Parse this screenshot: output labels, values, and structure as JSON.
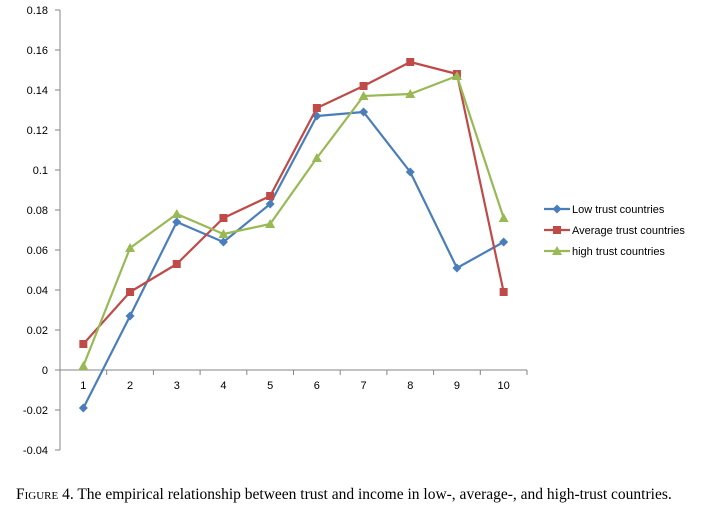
{
  "chart_data": {
    "type": "line",
    "x": [
      "1",
      "2",
      "3",
      "4",
      "5",
      "6",
      "7",
      "8",
      "9",
      "10"
    ],
    "ylim": [
      -0.04,
      0.18
    ],
    "yticks": [
      "-0.04",
      "-0.02",
      "0",
      "0.02",
      "0.04",
      "0.06",
      "0.08",
      "0.1",
      "0.12",
      "0.14",
      "0.16",
      "0.18"
    ],
    "ytick_values": [
      -0.04,
      -0.02,
      0,
      0.02,
      0.04,
      0.06,
      0.08,
      0.1,
      0.12,
      0.14,
      0.16,
      0.18
    ],
    "grid": false,
    "legend_position": "right",
    "series": [
      {
        "name": "Low trust countries",
        "color": "#4a7ebb",
        "marker": "diamond",
        "values": [
          -0.019,
          0.027,
          0.074,
          0.064,
          0.083,
          0.127,
          0.129,
          0.099,
          0.051,
          0.064
        ]
      },
      {
        "name": "Average trust  countries",
        "color": "#be4b48",
        "marker": "square",
        "values": [
          0.013,
          0.039,
          0.053,
          0.076,
          0.087,
          0.131,
          0.142,
          0.154,
          0.148,
          0.039
        ]
      },
      {
        "name": "high trust countries",
        "color": "#98b954",
        "marker": "triangle",
        "values": [
          0.002,
          0.061,
          0.078,
          0.068,
          0.073,
          0.106,
          0.137,
          0.138,
          0.147,
          0.076
        ]
      }
    ]
  },
  "caption": {
    "label": "Figure 4.",
    "text": "The empirical relationship between trust and income in low-, average-, and high-trust countries."
  }
}
